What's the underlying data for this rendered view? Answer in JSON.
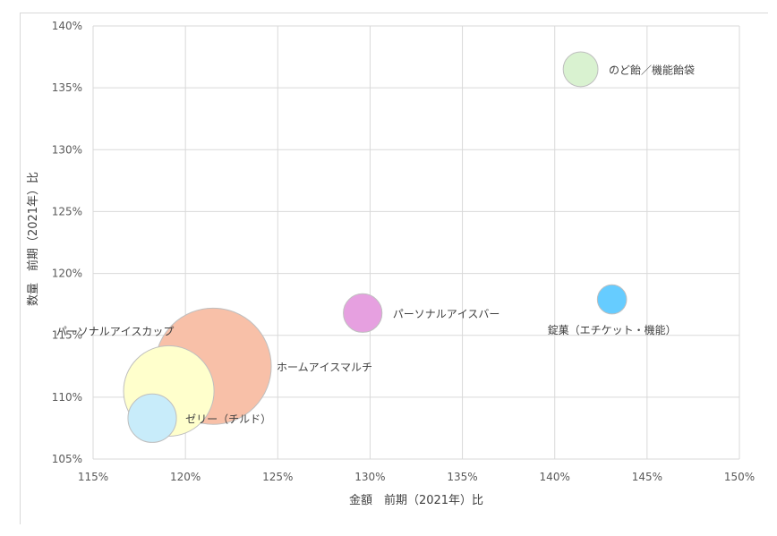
{
  "chart_data": {
    "type": "bubble",
    "title": "",
    "xlabel": "金額　前期（2021年）比",
    "ylabel": "数量　前期（2021年）比",
    "xlim": [
      115,
      150
    ],
    "ylim": [
      105,
      140
    ],
    "xticks": [
      "115%",
      "120%",
      "125%",
      "130%",
      "135%",
      "140%",
      "145%",
      "150%"
    ],
    "yticks": [
      "105%",
      "110%",
      "115%",
      "120%",
      "125%",
      "130%",
      "135%",
      "140%"
    ],
    "grid": true,
    "legend": "none",
    "series": [
      {
        "name": "のど飴／機能飴袋",
        "x": 141.4,
        "y": 136.5,
        "size": 1.7,
        "color": "#d9f2d0"
      },
      {
        "name": "錠菓（エチケット・機能）",
        "x": 143.1,
        "y": 117.9,
        "size": 1.2,
        "color": "#66ccff"
      },
      {
        "name": "パーソナルアイスバー",
        "x": 129.6,
        "y": 116.8,
        "size": 2.1,
        "color": "#e6a0e0"
      },
      {
        "name": "ホームアイスマルチ",
        "x": 121.5,
        "y": 112.5,
        "size": 19.0,
        "color": "#f8c0a8"
      },
      {
        "name": "パーソナルアイスカップ",
        "x": 119.1,
        "y": 110.5,
        "size": 11.5,
        "color": "#ffffcc"
      },
      {
        "name": "ゼリー（チルド）",
        "x": 118.2,
        "y": 108.3,
        "size": 3.3,
        "color": "#c8ecfa"
      }
    ]
  }
}
